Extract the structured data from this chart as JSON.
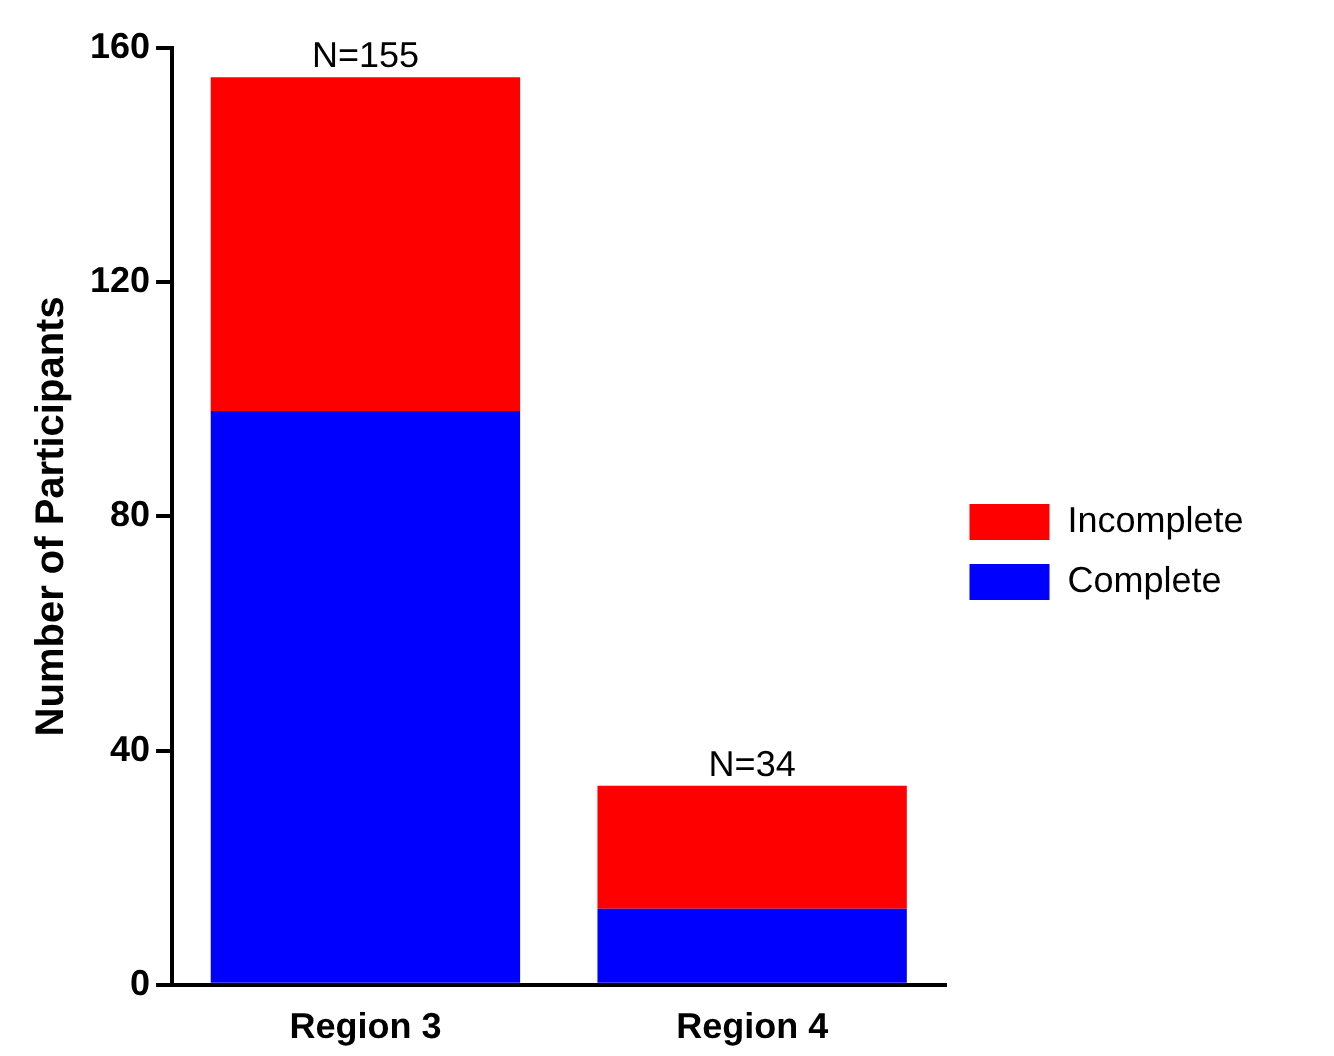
{
  "chart_data": {
    "type": "bar",
    "ylabel": "Number of Participants",
    "categories": [
      "Region 3",
      "Region 4"
    ],
    "stacked": true,
    "series": [
      {
        "name": "Complete",
        "color": "#0000ff",
        "values": [
          98,
          13
        ]
      },
      {
        "name": "Incomplete",
        "color": "#ff0000",
        "values": [
          57,
          21
        ]
      }
    ],
    "totals": [
      "N=155",
      "N=34"
    ],
    "ylim": [
      0,
      160
    ],
    "yticks": [
      0,
      40,
      80,
      120,
      160
    ],
    "grid": false,
    "legend": "right"
  }
}
